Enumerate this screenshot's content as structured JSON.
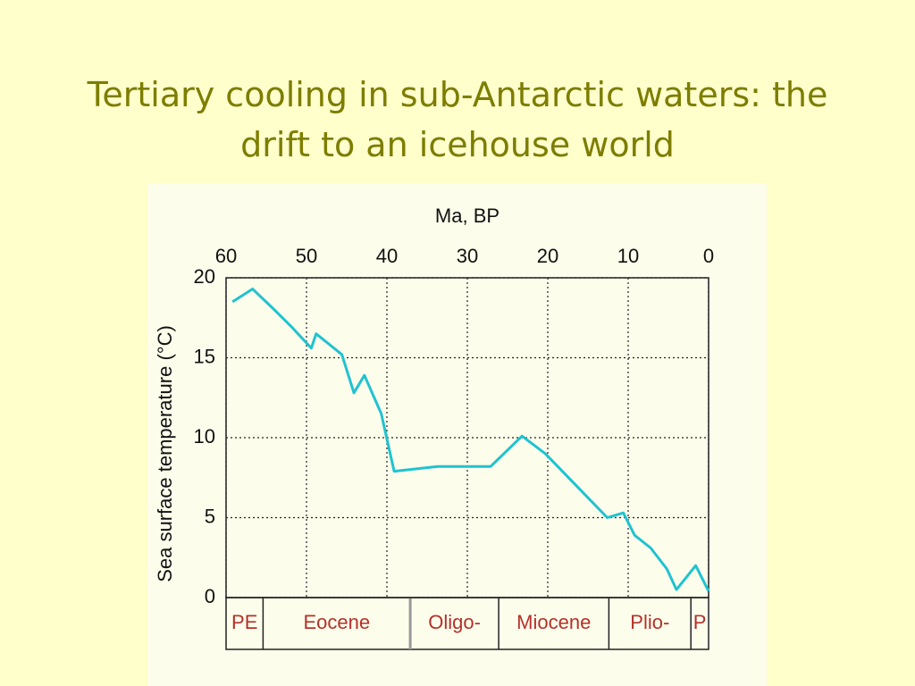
{
  "chart_data": {
    "type": "line",
    "title": "Tertiary cooling in sub-Antarctic waters: the drift to an icehouse world",
    "x_label": "Ma, BP",
    "y_label": "Sea surface temperature (°C)",
    "x": [
      59.2,
      56.7,
      54.2,
      51.8,
      49.4,
      48.8,
      45.6,
      44.1,
      42.8,
      40.7,
      39.1,
      33.7,
      27.1,
      23.2,
      20.3,
      12.6,
      10.6,
      9.2,
      7.2,
      5.2,
      4.0,
      1.6,
      0.0
    ],
    "values": [
      18.5,
      19.3,
      18.1,
      16.9,
      15.6,
      16.5,
      15.2,
      12.8,
      13.9,
      11.5,
      7.9,
      8.2,
      8.2,
      10.1,
      9.0,
      5.0,
      5.3,
      3.9,
      3.1,
      1.8,
      0.5,
      2.0,
      0.4
    ],
    "color": "#1fc3d0",
    "xlim": [
      60,
      0
    ],
    "ylim": [
      0,
      20
    ],
    "xticks": [
      60,
      50,
      40,
      30,
      20,
      10,
      0
    ],
    "yticks": [
      0,
      5,
      10,
      15,
      20
    ],
    "grid": true,
    "epochs": [
      "PE",
      "Eocene",
      "Oligo-",
      "Miocene",
      "Plio-",
      "P"
    ],
    "epoch_boundaries": [
      55.4,
      37.1,
      26.1,
      12.4,
      2.2
    ],
    "epoch_color": "#b5312a"
  }
}
